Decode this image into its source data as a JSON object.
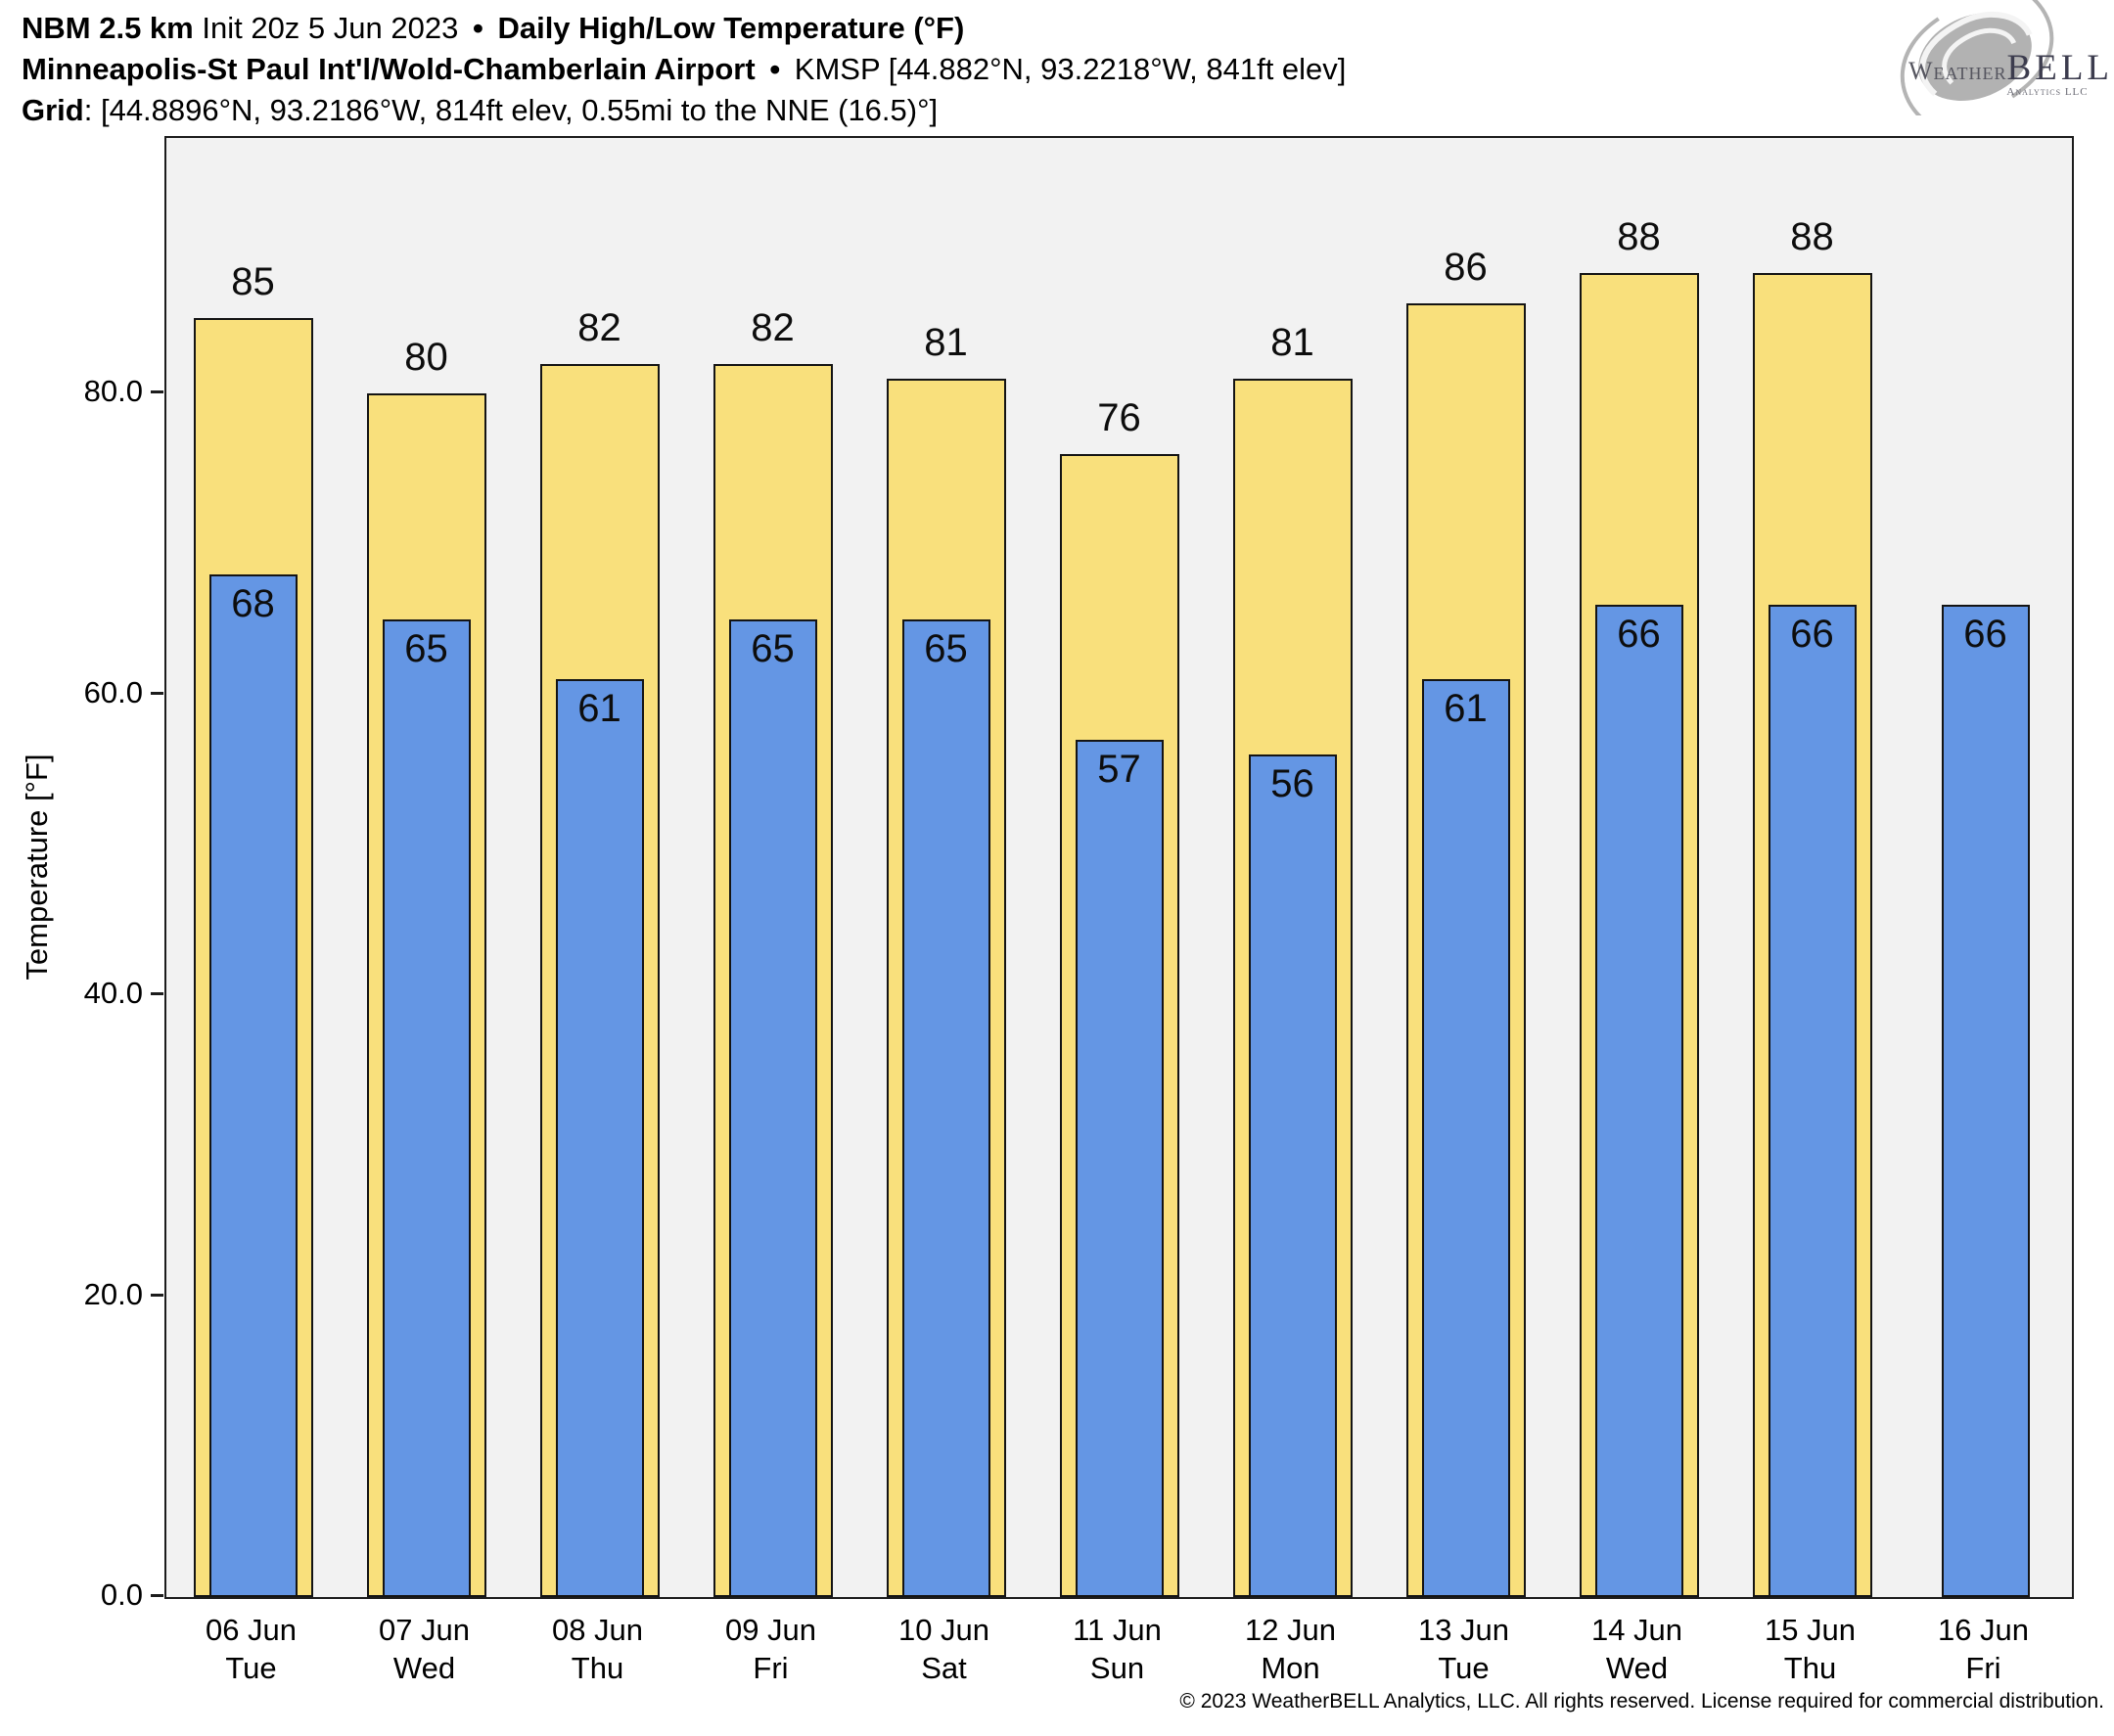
{
  "header": {
    "line1_model": "NBM 2.5 km",
    "line1_init": "Init 20z 5 Jun 2023",
    "line1_sep": "•",
    "line1_product": "Daily High/Low Temperature (°F)",
    "line2_station": "Minneapolis-St Paul Int'l/Wold-Chamberlain Airport",
    "line2_sep": "•",
    "line2_meta": "KMSP [44.882°N, 93.2218°W, 841ft elev]",
    "line3_label": "Grid",
    "line3_value": ": [44.8896°N, 93.2186°W, 814ft elev, 0.55mi to the NNE (16.5)°]"
  },
  "logo": {
    "word_weather": "Weather",
    "word_bell": "BELL",
    "subtitle": "Analytics LLC"
  },
  "chart_data": {
    "type": "bar",
    "title": "NBM 2.5 km Daily High/Low Temperature (°F) — KMSP",
    "categories": [
      "06 Jun",
      "07 Jun",
      "08 Jun",
      "09 Jun",
      "10 Jun",
      "11 Jun",
      "12 Jun",
      "13 Jun",
      "14 Jun",
      "15 Jun",
      "16 Jun"
    ],
    "weekdays": [
      "Tue",
      "Wed",
      "Thu",
      "Fri",
      "Sat",
      "Sun",
      "Mon",
      "Tue",
      "Wed",
      "Thu",
      "Fri"
    ],
    "series": [
      {
        "name": "High",
        "color": "#f9e07c",
        "values": [
          85,
          80,
          82,
          82,
          81,
          76,
          81,
          86,
          88,
          88,
          null
        ]
      },
      {
        "name": "Low",
        "color": "#6496e4",
        "values": [
          68,
          65,
          61,
          65,
          65,
          57,
          56,
          61,
          66,
          66,
          66
        ]
      }
    ],
    "ylabel": "Temperature [°F]",
    "yticks": [
      {
        "value": 0,
        "label": "0.0"
      },
      {
        "value": 20,
        "label": "20.0"
      },
      {
        "value": 40,
        "label": "40.0"
      },
      {
        "value": 60,
        "label": "60.0"
      },
      {
        "value": 80,
        "label": "80.0"
      }
    ],
    "ylim": [
      0,
      97
    ],
    "grid": false,
    "legend_position": "none",
    "plot_background": "#f2f2f2",
    "bar_edge_color": "#141414"
  },
  "footer": {
    "copyright": "© 2023 WeatherBELL Analytics, LLC. All rights reserved. License required for commercial distribution."
  }
}
